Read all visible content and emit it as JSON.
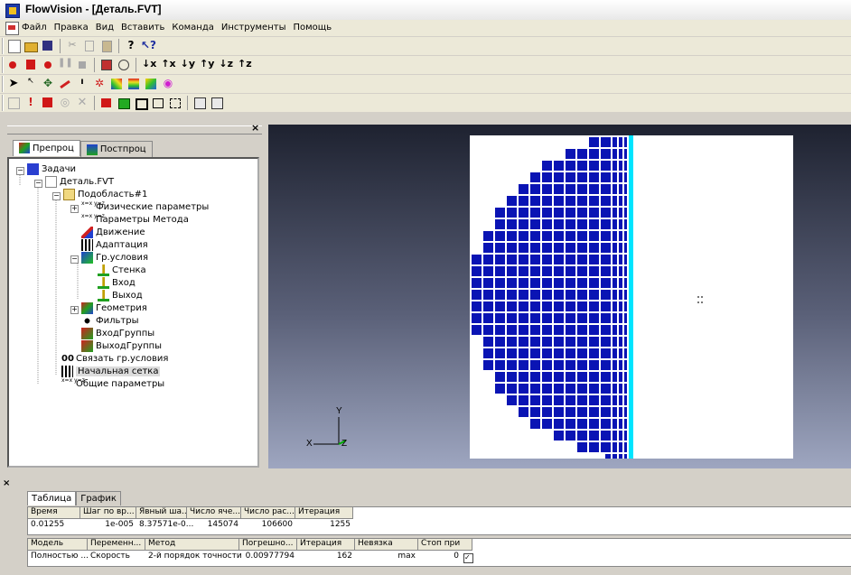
{
  "window": {
    "title": "FlowVision - [Деталь.FVT]"
  },
  "menu": [
    "Файл",
    "Правка",
    "Вид",
    "Вставить",
    "Команда",
    "Инструменты",
    "Помощь"
  ],
  "toolbar": {
    "axis_buttons": [
      "↓x",
      "↑x",
      "↓y",
      "↑y",
      "↓z",
      "↑z"
    ]
  },
  "left_panel": {
    "tabs": [
      "Препроц",
      "Постпроц"
    ],
    "tree": [
      {
        "label": "Задачи",
        "icon": "tasks-icon"
      },
      {
        "label": "Деталь.FVT",
        "icon": "project-file-icon"
      },
      {
        "label": "Подобласть#1",
        "icon": "folder-icon"
      },
      {
        "label": "Физические параметры",
        "icon": "parameters-icon"
      },
      {
        "label": "Параметры Метода",
        "icon": "parameters-icon"
      },
      {
        "label": "Движение",
        "icon": "motion-icon"
      },
      {
        "label": "Адаптация",
        "icon": "adaptation-icon"
      },
      {
        "label": "Гр.условия",
        "icon": "boundary-conditions-icon"
      },
      {
        "label": "Стенка",
        "icon": "boundary-icon"
      },
      {
        "label": "Вход",
        "icon": "boundary-icon"
      },
      {
        "label": "Выход",
        "icon": "boundary-icon"
      },
      {
        "label": "Геометрия",
        "icon": "geometry-icon"
      },
      {
        "label": "Фильтры",
        "icon": "filter-icon"
      },
      {
        "label": "ВходГруппы",
        "icon": "group-icon"
      },
      {
        "label": "ВыходГруппы",
        "icon": "group-icon"
      },
      {
        "label": "Связать гр.условия",
        "icon": "link-icon"
      },
      {
        "label": "Начальная сетка",
        "icon": "grid-icon"
      },
      {
        "label": "Общие параметры",
        "icon": "parameters-icon"
      }
    ]
  },
  "viewport": {
    "axis_x": "X",
    "axis_y": "Y",
    "axis_z": "Z",
    "mesh_color": "#0a14b4",
    "edge_color": "#00e5ff"
  },
  "bottom_panel": {
    "tabs": [
      "Таблица",
      "График"
    ],
    "table1": {
      "headers": [
        "Время",
        "Шаг по вр...",
        "Явный ша...",
        "Число яче...",
        "Число рас...",
        "Итерация"
      ],
      "row": [
        "0.01255",
        "1e-005",
        "8.37571e-0...",
        "145074",
        "106600",
        "1255"
      ]
    },
    "table2": {
      "headers": [
        "Модель",
        "Переменн...",
        "Метод",
        "Погрешно...",
        "Итерация",
        "Невязка",
        "Стоп при"
      ],
      "row": [
        "Полностью ...",
        "Скорость",
        "2-й порядок точности",
        "0.00977794",
        "162",
        "max",
        "0"
      ]
    }
  }
}
